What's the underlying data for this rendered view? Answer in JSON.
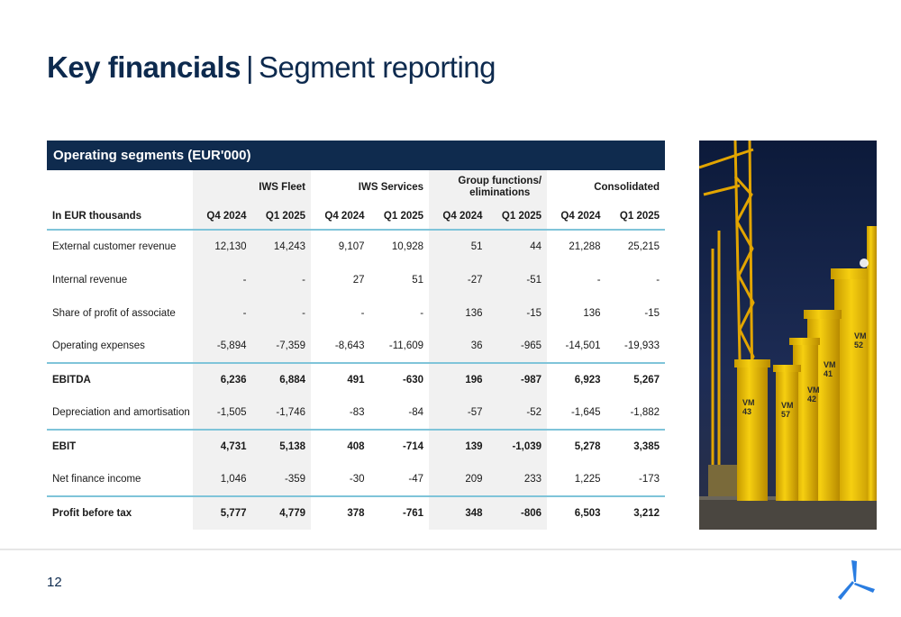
{
  "header": {
    "title_bold": "Key financials",
    "separator": "|",
    "title_light": "Segment reporting"
  },
  "table": {
    "panel_title": "Operating segments (EUR'000)",
    "groups": [
      "IWS Fleet",
      "IWS Services",
      "Group functions/\neliminations",
      "Consolidated"
    ],
    "row_header_label": "In EUR thousands",
    "periods": [
      "Q4 2024",
      "Q1 2025",
      "Q4 2024",
      "Q1 2025",
      "Q4 2024",
      "Q1 2025",
      "Q4 2024",
      "Q1 2025"
    ],
    "rows": [
      {
        "label": "External customer revenue",
        "values": [
          "12,130",
          "14,243",
          "9,107",
          "10,928",
          "51",
          "44",
          "21,288",
          "25,215"
        ]
      },
      {
        "label": "Internal revenue",
        "values": [
          "-",
          "-",
          "27",
          "51",
          "-27",
          "-51",
          "-",
          "-"
        ]
      },
      {
        "label": "Share of profit of associate",
        "values": [
          "-",
          "-",
          "-",
          "-",
          "136",
          "-15",
          "136",
          "-15"
        ]
      },
      {
        "label": "Operating expenses",
        "values": [
          "-5,894",
          "-7,359",
          "-8,643",
          "-11,609",
          "36",
          "-965",
          "-14,501",
          "-19,933"
        ]
      },
      {
        "label": "EBITDA",
        "values": [
          "6,236",
          "6,884",
          "491",
          "-630",
          "196",
          "-987",
          "6,923",
          "5,267"
        ]
      },
      {
        "label": "Depreciation and amortisation",
        "values": [
          "-1,505",
          "-1,746",
          "-83",
          "-84",
          "-57",
          "-52",
          "-1,645",
          "-1,882"
        ]
      },
      {
        "label": "EBIT",
        "values": [
          "4,731",
          "5,138",
          "408",
          "-714",
          "139",
          "-1,039",
          "5,278",
          "3,385"
        ]
      },
      {
        "label": "Net finance income",
        "values": [
          "1,046",
          "-359",
          "-30",
          "-47",
          "209",
          "233",
          "1,225",
          "-173"
        ]
      },
      {
        "label": "Profit before tax",
        "values": [
          "5,777",
          "4,779",
          "378",
          "-761",
          "348",
          "-806",
          "6,503",
          "3,212"
        ]
      }
    ]
  },
  "photo": {
    "labels": [
      "VM\n52",
      "VM\n41",
      "VM\n42",
      "VM\n57",
      "VM\n43"
    ]
  },
  "footer": {
    "page_number": "12"
  },
  "colors": {
    "navy": "#0f2b4e",
    "accent_line": "#7fc4d9",
    "logo_blue": "#2a7de1",
    "monopile_yellow": "#f4c400"
  }
}
